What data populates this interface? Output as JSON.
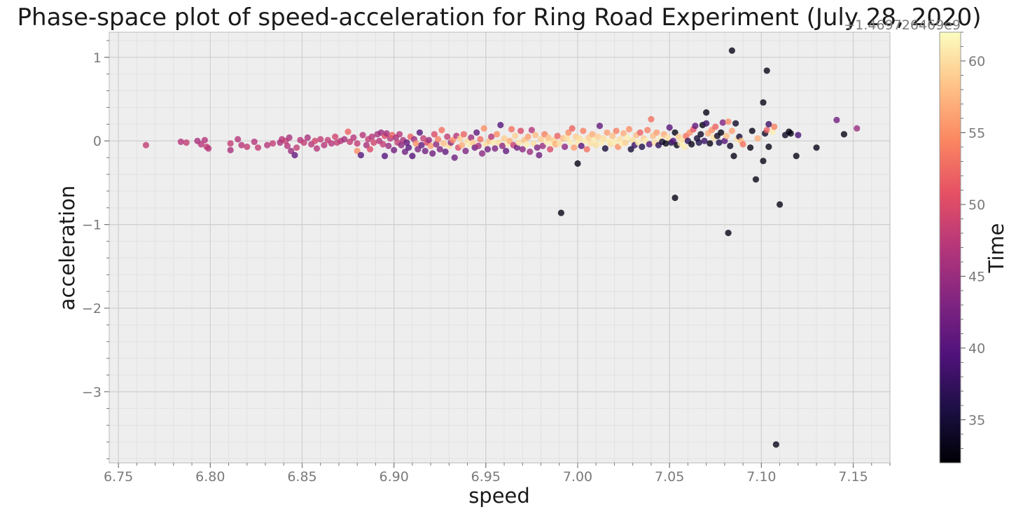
{
  "chart_data": {
    "type": "scatter",
    "title": "Phase-space plot of speed-acceleration for Ring Road Experiment (July 28, 2020)",
    "xlabel": "speed",
    "ylabel": "acceleration",
    "xlim": [
      6.745,
      7.17
    ],
    "ylim": [
      -3.85,
      1.3
    ],
    "xticks": [
      "6.75",
      "6.80",
      "6.85",
      "6.90",
      "6.95",
      "7.00",
      "7.05",
      "7.10",
      "7.15"
    ],
    "yticks": [
      "1",
      "0",
      "−1",
      "−2",
      "−3"
    ],
    "grid": true,
    "colormap": "magma",
    "colorbar": {
      "label": "Time",
      "offset_text": "+1.469726469e9",
      "range": [
        32,
        62
      ],
      "ticks": [
        "35",
        "40",
        "45",
        "50",
        "55",
        "60"
      ]
    },
    "colors": {
      "axes_background": "#eeeeee",
      "grid_major": "#cfcfcf",
      "grid_minor": "#e2e2e2"
    },
    "points": [
      [
        6.765,
        -0.05,
        48
      ],
      [
        6.784,
        -0.01,
        47
      ],
      [
        6.787,
        -0.02,
        48
      ],
      [
        6.793,
        0.0,
        46
      ],
      [
        6.795,
        -0.04,
        47
      ],
      [
        6.797,
        0.01,
        47
      ],
      [
        6.798,
        -0.07,
        48
      ],
      [
        6.799,
        -0.09,
        47
      ],
      [
        6.811,
        -0.03,
        48
      ],
      [
        6.811,
        -0.11,
        46
      ],
      [
        6.815,
        0.02,
        47
      ],
      [
        6.817,
        -0.05,
        47
      ],
      [
        6.82,
        -0.07,
        48
      ],
      [
        6.824,
        -0.01,
        47
      ],
      [
        6.826,
        -0.08,
        48
      ],
      [
        6.831,
        -0.05,
        47
      ],
      [
        6.834,
        -0.03,
        48
      ],
      [
        6.838,
        -0.02,
        46
      ],
      [
        6.839,
        0.02,
        47
      ],
      [
        6.841,
        0.0,
        48
      ],
      [
        6.842,
        -0.06,
        47
      ],
      [
        6.843,
        0.04,
        46
      ],
      [
        6.844,
        -0.12,
        45
      ],
      [
        6.846,
        -0.17,
        41
      ],
      [
        6.847,
        -0.08,
        48
      ],
      [
        6.849,
        0.01,
        47
      ],
      [
        6.851,
        -0.02,
        48
      ],
      [
        6.853,
        0.04,
        46
      ],
      [
        6.855,
        -0.04,
        47
      ],
      [
        6.857,
        0.0,
        49
      ],
      [
        6.858,
        -0.09,
        47
      ],
      [
        6.86,
        0.02,
        48
      ],
      [
        6.862,
        -0.05,
        47
      ],
      [
        6.864,
        0.01,
        48
      ],
      [
        6.866,
        -0.03,
        47
      ],
      [
        6.868,
        0.05,
        49
      ],
      [
        6.869,
        -0.02,
        48
      ],
      [
        6.871,
        0.0,
        47
      ],
      [
        6.873,
        0.02,
        46
      ],
      [
        6.875,
        0.11,
        52
      ],
      [
        6.876,
        -0.01,
        48
      ],
      [
        6.878,
        0.04,
        47
      ],
      [
        6.88,
        -0.03,
        48
      ],
      [
        6.88,
        -0.12,
        55
      ],
      [
        6.882,
        -0.17,
        40
      ],
      [
        6.883,
        0.07,
        47
      ],
      [
        6.885,
        -0.05,
        46
      ],
      [
        6.886,
        0.02,
        48
      ],
      [
        6.887,
        -0.1,
        50
      ],
      [
        6.888,
        0.05,
        47
      ],
      [
        6.889,
        -0.02,
        49
      ],
      [
        6.891,
        0.08,
        46
      ],
      [
        6.892,
        0.0,
        47
      ],
      [
        6.893,
        0.1,
        45
      ],
      [
        6.894,
        -0.04,
        48
      ],
      [
        6.895,
        0.06,
        50
      ],
      [
        6.895,
        -0.18,
        40
      ],
      [
        6.896,
        0.09,
        46
      ],
      [
        6.897,
        -0.06,
        45
      ],
      [
        6.898,
        0.03,
        47
      ],
      [
        6.899,
        0.07,
        52
      ],
      [
        6.9,
        -0.11,
        42
      ],
      [
        6.901,
        0.04,
        46
      ],
      [
        6.902,
        -0.02,
        48
      ],
      [
        6.903,
        0.08,
        47
      ],
      [
        6.904,
        -0.05,
        44
      ],
      [
        6.905,
        0.01,
        46
      ],
      [
        6.906,
        -0.13,
        42
      ],
      [
        6.907,
        -0.02,
        41
      ],
      [
        6.908,
        -0.08,
        40
      ],
      [
        6.909,
        0.05,
        52
      ],
      [
        6.91,
        -0.18,
        40
      ],
      [
        6.911,
        0.02,
        45
      ],
      [
        6.912,
        -0.03,
        55
      ],
      [
        6.913,
        -0.1,
        43
      ],
      [
        6.914,
        0.1,
        40
      ],
      [
        6.915,
        -0.05,
        41
      ],
      [
        6.916,
        0.03,
        48
      ],
      [
        6.917,
        -0.12,
        42
      ],
      [
        6.918,
        -0.02,
        50
      ],
      [
        6.919,
        0.01,
        45
      ],
      [
        6.92,
        -0.06,
        56
      ],
      [
        6.921,
        -0.15,
        42
      ],
      [
        6.922,
        0.08,
        50
      ],
      [
        6.923,
        -0.04,
        44
      ],
      [
        6.924,
        0.02,
        54
      ],
      [
        6.925,
        -0.1,
        43
      ],
      [
        6.926,
        0.13,
        53
      ],
      [
        6.927,
        -0.03,
        58
      ],
      [
        6.928,
        -0.13,
        41
      ],
      [
        6.929,
        0.05,
        48
      ],
      [
        6.93,
        -0.06,
        60
      ],
      [
        6.931,
        -0.02,
        44
      ],
      [
        6.932,
        0.01,
        55
      ],
      [
        6.933,
        -0.2,
        42
      ],
      [
        6.934,
        0.06,
        47
      ],
      [
        6.935,
        -0.08,
        50
      ],
      [
        6.936,
        0.03,
        59
      ],
      [
        6.937,
        -0.05,
        57
      ],
      [
        6.938,
        0.08,
        52
      ],
      [
        6.939,
        -0.12,
        43
      ],
      [
        6.94,
        0.0,
        60
      ],
      [
        6.941,
        -0.04,
        61
      ],
      [
        6.942,
        0.04,
        45
      ],
      [
        6.943,
        -0.02,
        59
      ],
      [
        6.944,
        -0.08,
        42
      ],
      [
        6.945,
        0.1,
        41
      ],
      [
        6.946,
        -0.06,
        46
      ],
      [
        6.947,
        0.02,
        53
      ],
      [
        6.948,
        -0.15,
        44
      ],
      [
        6.949,
        0.15,
        55
      ],
      [
        6.95,
        -0.04,
        60
      ],
      [
        6.951,
        -0.1,
        42
      ],
      [
        6.952,
        0.0,
        58
      ],
      [
        6.953,
        0.05,
        47
      ],
      [
        6.954,
        -0.02,
        61
      ],
      [
        6.955,
        -0.09,
        43
      ],
      [
        6.956,
        0.08,
        55
      ],
      [
        6.957,
        -0.02,
        60
      ],
      [
        6.958,
        0.19,
        40
      ],
      [
        6.959,
        -0.06,
        44
      ],
      [
        6.96,
        0.03,
        59
      ],
      [
        6.961,
        -0.12,
        41
      ],
      [
        6.962,
        -0.03,
        61
      ],
      [
        6.963,
        0.0,
        57
      ],
      [
        6.964,
        0.14,
        53
      ],
      [
        6.965,
        -0.05,
        48
      ],
      [
        6.966,
        0.06,
        59
      ],
      [
        6.967,
        -0.08,
        42
      ],
      [
        6.968,
        -0.02,
        60
      ],
      [
        6.969,
        0.12,
        50
      ],
      [
        6.97,
        -0.1,
        44
      ],
      [
        6.971,
        0.01,
        58
      ],
      [
        6.972,
        -0.04,
        61
      ],
      [
        6.973,
        0.05,
        56
      ],
      [
        6.974,
        -0.13,
        45
      ],
      [
        6.975,
        0.13,
        47
      ],
      [
        6.976,
        -0.03,
        60
      ],
      [
        6.977,
        0.07,
        58
      ],
      [
        6.978,
        -0.08,
        43
      ],
      [
        6.979,
        -0.17,
        42
      ],
      [
        6.98,
        0.02,
        59
      ],
      [
        6.981,
        -0.06,
        45
      ],
      [
        6.982,
        0.08,
        54
      ],
      [
        6.983,
        -0.01,
        61
      ],
      [
        6.984,
        0.04,
        58
      ],
      [
        6.985,
        -0.1,
        50
      ],
      [
        6.986,
        -0.03,
        61
      ],
      [
        6.987,
        0.01,
        59
      ],
      [
        6.988,
        -0.04,
        57
      ],
      [
        6.989,
        0.06,
        52
      ],
      [
        6.99,
        -0.03,
        60
      ],
      [
        6.991,
        -0.86,
        33
      ],
      [
        6.992,
        0.03,
        58
      ],
      [
        6.993,
        -0.07,
        44
      ],
      [
        6.994,
        0.04,
        60
      ],
      [
        6.995,
        0.1,
        55
      ],
      [
        6.996,
        -0.01,
        61
      ],
      [
        6.997,
        0.15,
        52
      ],
      [
        6.998,
        -0.08,
        56
      ],
      [
        6.999,
        0.05,
        59
      ],
      [
        7.0,
        -0.27,
        33
      ],
      [
        7.0,
        -0.02,
        61
      ],
      [
        7.001,
        0.03,
        60
      ],
      [
        7.002,
        -0.06,
        40
      ],
      [
        7.003,
        0.12,
        54
      ],
      [
        7.004,
        0.0,
        61
      ],
      [
        7.005,
        -0.1,
        53
      ],
      [
        7.006,
        0.04,
        59
      ],
      [
        7.007,
        -0.03,
        60
      ],
      [
        7.008,
        0.08,
        57
      ],
      [
        7.009,
        0.01,
        61
      ],
      [
        7.01,
        -0.05,
        60
      ],
      [
        7.011,
        0.05,
        59
      ],
      [
        7.012,
        0.18,
        41
      ],
      [
        7.013,
        -0.02,
        61
      ],
      [
        7.014,
        0.03,
        60
      ],
      [
        7.015,
        -0.09,
        35
      ],
      [
        7.016,
        0.1,
        56
      ],
      [
        7.017,
        0.0,
        61
      ],
      [
        7.018,
        -0.04,
        60
      ],
      [
        7.019,
        0.06,
        58
      ],
      [
        7.02,
        -0.01,
        61
      ],
      [
        7.021,
        0.12,
        54
      ],
      [
        7.022,
        -0.07,
        55
      ],
      [
        7.023,
        0.02,
        60
      ],
      [
        7.024,
        -0.03,
        61
      ],
      [
        7.025,
        0.09,
        57
      ],
      [
        7.026,
        -0.02,
        59
      ],
      [
        7.027,
        0.04,
        61
      ],
      [
        7.028,
        0.14,
        55
      ],
      [
        7.029,
        -0.1,
        35
      ],
      [
        7.03,
        0.01,
        60
      ],
      [
        7.031,
        -0.05,
        38
      ],
      [
        7.032,
        0.07,
        58
      ],
      [
        7.033,
        -0.02,
        61
      ],
      [
        7.034,
        0.1,
        52
      ],
      [
        7.035,
        -0.07,
        36
      ],
      [
        7.036,
        0.03,
        59
      ],
      [
        7.037,
        0.0,
        61
      ],
      [
        7.038,
        0.13,
        54
      ],
      [
        7.039,
        -0.04,
        40
      ],
      [
        7.04,
        0.26,
        53
      ],
      [
        7.041,
        0.06,
        58
      ],
      [
        7.042,
        -0.02,
        60
      ],
      [
        7.043,
        0.1,
        56
      ],
      [
        7.044,
        -0.05,
        37
      ],
      [
        7.045,
        0.02,
        61
      ],
      [
        7.046,
        -0.01,
        35
      ],
      [
        7.047,
        0.08,
        57
      ],
      [
        7.048,
        -0.03,
        33
      ],
      [
        7.049,
        0.04,
        60
      ],
      [
        7.05,
        0.16,
        40
      ],
      [
        7.051,
        -0.02,
        36
      ],
      [
        7.052,
        0.0,
        40
      ],
      [
        7.053,
        0.1,
        33
      ],
      [
        7.053,
        -0.68,
        33
      ],
      [
        7.054,
        -0.05,
        33
      ],
      [
        7.055,
        0.05,
        59
      ],
      [
        7.056,
        -0.03,
        61
      ],
      [
        7.057,
        0.02,
        60
      ],
      [
        7.058,
        -0.07,
        61
      ],
      [
        7.059,
        0.06,
        53
      ],
      [
        7.06,
        0.0,
        37
      ],
      [
        7.061,
        0.1,
        55
      ],
      [
        7.062,
        -0.04,
        33
      ],
      [
        7.063,
        0.14,
        51
      ],
      [
        7.064,
        0.18,
        41
      ],
      [
        7.065,
        0.03,
        35
      ],
      [
        7.066,
        -0.02,
        36
      ],
      [
        7.067,
        0.08,
        34
      ],
      [
        7.068,
        0.19,
        33
      ],
      [
        7.069,
        0.0,
        38
      ],
      [
        7.07,
        0.34,
        33
      ],
      [
        7.07,
        0.21,
        38
      ],
      [
        7.071,
        0.09,
        57
      ],
      [
        7.072,
        -0.03,
        33
      ],
      [
        7.073,
        0.13,
        55
      ],
      [
        7.074,
        0.04,
        60
      ],
      [
        7.075,
        0.17,
        52
      ],
      [
        7.076,
        0.06,
        34
      ],
      [
        7.077,
        -0.02,
        36
      ],
      [
        7.078,
        0.1,
        33
      ],
      [
        7.079,
        0.22,
        43
      ],
      [
        7.08,
        0.0,
        40
      ],
      [
        7.081,
        0.06,
        58
      ],
      [
        7.082,
        -1.1,
        33
      ],
      [
        7.082,
        0.23,
        55
      ],
      [
        7.083,
        -0.06,
        34
      ],
      [
        7.084,
        0.12,
        56
      ],
      [
        7.084,
        1.08,
        33
      ],
      [
        7.085,
        -0.18,
        33
      ],
      [
        7.086,
        0.21,
        34
      ],
      [
        7.087,
        0.02,
        60
      ],
      [
        7.088,
        0.05,
        35
      ],
      [
        7.089,
        0.0,
        58
      ],
      [
        7.09,
        -0.04,
        53
      ],
      [
        7.094,
        -0.08,
        33
      ],
      [
        7.095,
        0.12,
        33
      ],
      [
        7.097,
        -0.46,
        33
      ],
      [
        7.098,
        0.03,
        57
      ],
      [
        7.101,
        0.46,
        33
      ],
      [
        7.101,
        -0.24,
        33
      ],
      [
        7.102,
        0.09,
        34
      ],
      [
        7.103,
        0.84,
        33
      ],
      [
        7.103,
        0.13,
        52
      ],
      [
        7.104,
        -0.07,
        33
      ],
      [
        7.104,
        0.2,
        38
      ],
      [
        7.106,
        0.11,
        61
      ],
      [
        7.107,
        0.17,
        54
      ],
      [
        7.108,
        -3.63,
        33
      ],
      [
        7.11,
        -0.76,
        33
      ],
      [
        7.113,
        0.07,
        34
      ],
      [
        7.115,
        0.11,
        33
      ],
      [
        7.116,
        0.09,
        33
      ],
      [
        7.119,
        -0.18,
        33
      ],
      [
        7.12,
        0.07,
        39
      ],
      [
        7.13,
        -0.08,
        33
      ],
      [
        7.141,
        0.25,
        42
      ],
      [
        7.145,
        0.08,
        33
      ],
      [
        7.152,
        0.15,
        45
      ]
    ]
  }
}
